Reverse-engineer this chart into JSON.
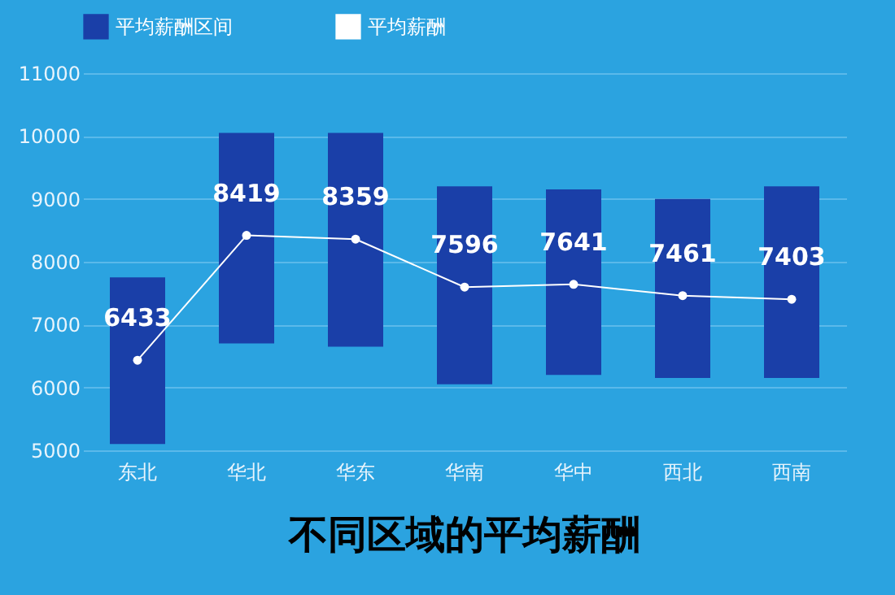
{
  "chart_data": {
    "type": "bar",
    "title": "不同区域的平均薪酬",
    "categories": [
      "东北",
      "华北",
      "华东",
      "华南",
      "华中",
      "西北",
      "西南"
    ],
    "series": [
      {
        "name": "平均薪酬区间",
        "color": "#1a3fa8",
        "base": [
          5100,
          6700,
          6650,
          6050,
          6200,
          6150,
          6150
        ],
        "values": [
          2650,
          3350,
          3400,
          3150,
          2950,
          2850,
          3050
        ]
      },
      {
        "name": "平均薪酬",
        "type": "line",
        "color": "#ffffff",
        "marker": "circle",
        "values": [
          6433,
          8419,
          8359,
          7596,
          7641,
          7461,
          7403
        ],
        "value_labels": [
          "6433",
          "8419",
          "8359",
          "7596",
          "7641",
          "7461",
          "7403"
        ]
      }
    ],
    "ylim": [
      5000,
      11000
    ],
    "yticks": [
      5000,
      6000,
      7000,
      8000,
      9000,
      10000,
      11000
    ],
    "grid": "y",
    "legend": "top"
  }
}
